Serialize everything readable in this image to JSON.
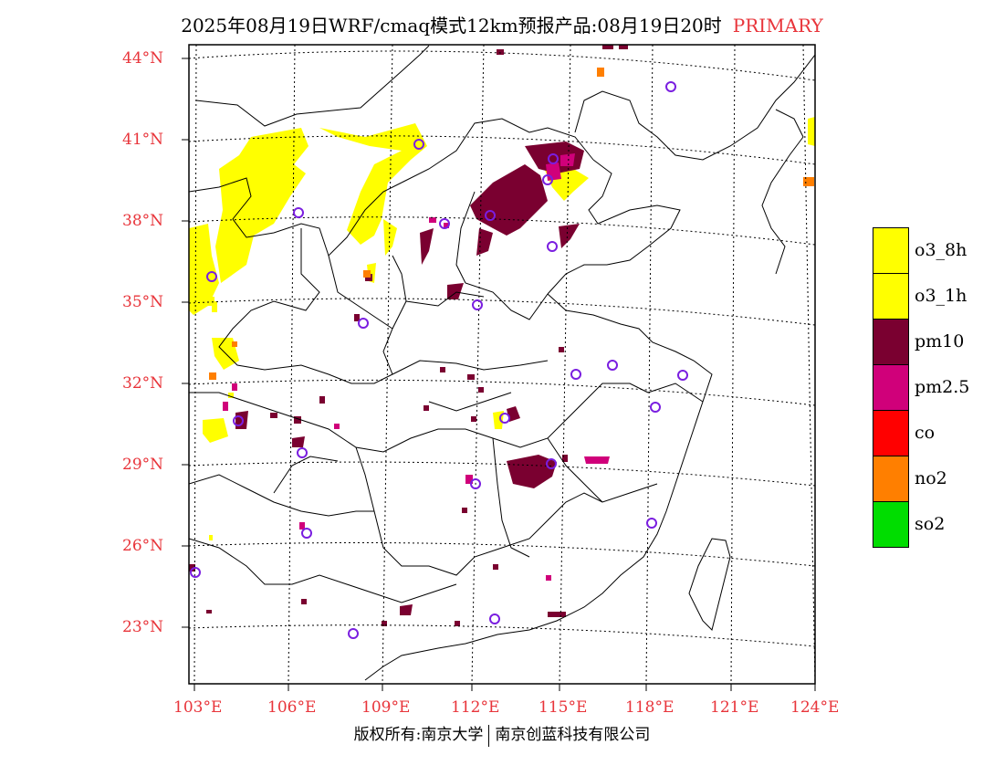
{
  "title": {
    "main": "2025年08月19日WRF/cmaq模式12km预报产品:08月19日20时",
    "tag": "PRIMARY"
  },
  "axes": {
    "lat_labels": [
      "44°N",
      "41°N",
      "38°N",
      "35°N",
      "32°N",
      "29°N",
      "26°N",
      "23°N"
    ],
    "lon_labels": [
      "103°E",
      "106°E",
      "109°E",
      "112°E",
      "115°E",
      "118°E",
      "121°E",
      "124°E"
    ]
  },
  "legend": [
    {
      "label": "o3_8h",
      "color": "#ffff00"
    },
    {
      "label": "o3_1h",
      "color": "#ffff00"
    },
    {
      "label": "pm10",
      "color": "#7a0030"
    },
    {
      "label": "pm2.5",
      "color": "#d0007a"
    },
    {
      "label": "co",
      "color": "#ff0000"
    },
    {
      "label": "no2",
      "color": "#ff7f00"
    },
    {
      "label": "so2",
      "color": "#00dd00"
    }
  ],
  "footer": {
    "left": "版权所有:南京大学",
    "right": "南京创蓝科技有限公司"
  }
}
